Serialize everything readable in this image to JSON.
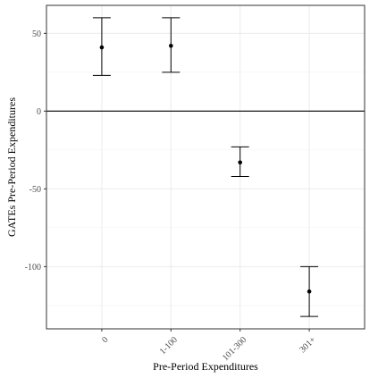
{
  "chart_data": {
    "type": "scatter",
    "subtype": "point-with-error-bars",
    "title": "",
    "xlabel": "Pre-Period Expenditures",
    "ylabel": "GATEs Pre-Period Expenditures",
    "categories": [
      "0",
      "1-100",
      "101-300",
      "301+"
    ],
    "estimates": [
      41,
      42,
      -33,
      -116
    ],
    "ci_lower": [
      23,
      25,
      -42,
      -132
    ],
    "ci_upper": [
      60,
      60,
      -23,
      -100
    ],
    "ylim": [
      -140,
      68
    ],
    "y_ticks": [
      50,
      0,
      -50,
      -100
    ],
    "y_tick_labels": [
      "50",
      "0",
      "-50",
      "-100"
    ],
    "reference_line_y": 0,
    "grid": true,
    "legend": "none",
    "colors": {
      "point": "#000000",
      "errorbar": "#000000",
      "grid": "#ebebeb",
      "panel_border": "#333333",
      "axis_text": "#4d4d4d"
    }
  }
}
